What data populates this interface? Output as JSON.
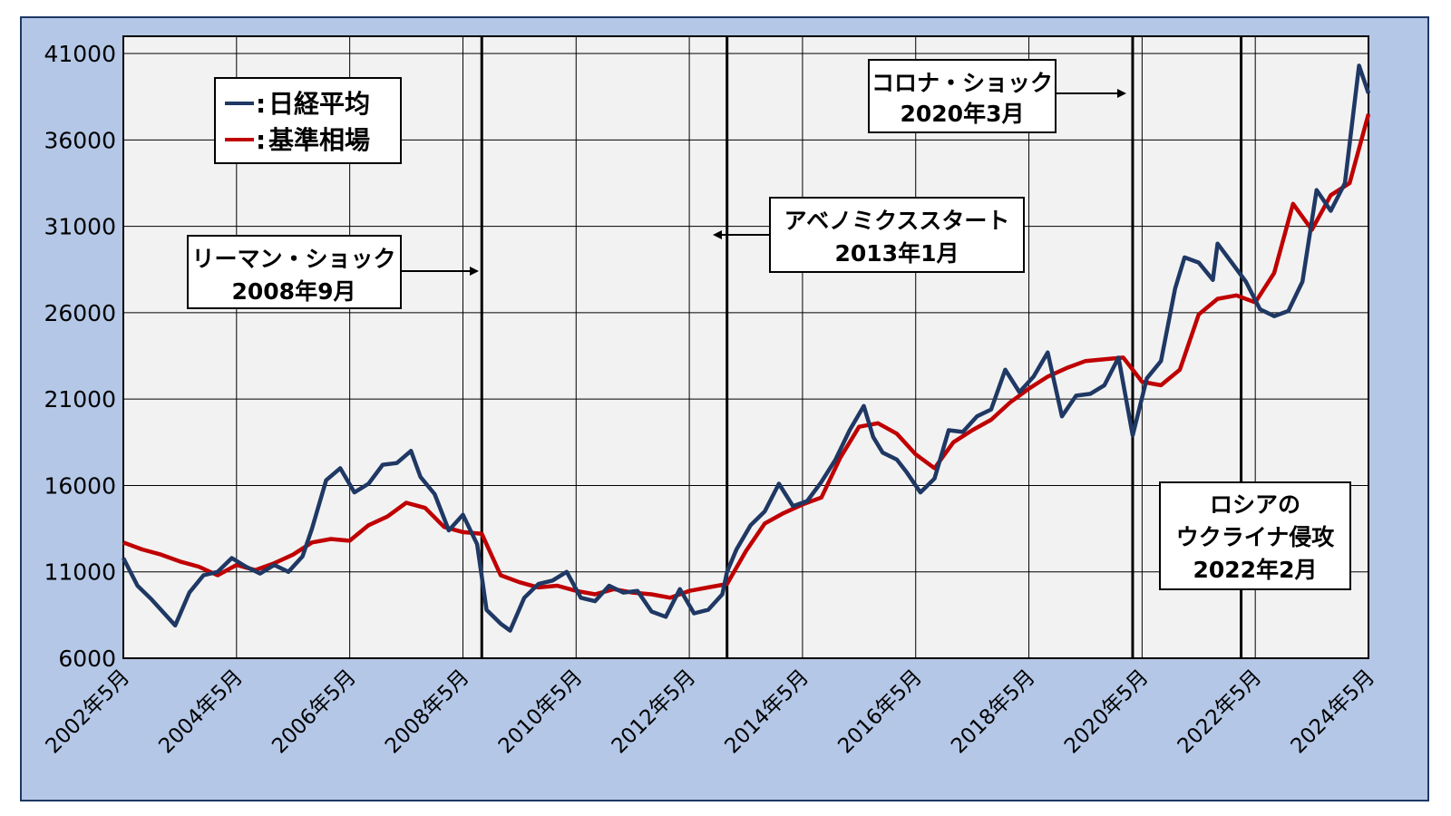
{
  "chart_data": {
    "type": "line",
    "title": "",
    "xlabel": "",
    "ylabel": "",
    "ylim": [
      6000,
      42000
    ],
    "yticks": [
      6000,
      11000,
      16000,
      21000,
      26000,
      31000,
      36000,
      41000
    ],
    "ytick_labels": [
      "6000",
      "11000",
      "16000",
      "21000",
      "26000",
      "31000",
      "36000",
      "41000"
    ],
    "xlim": [
      "2002-05",
      "2024-05"
    ],
    "xtick_labels": [
      "2002年5月",
      "2004年5月",
      "2006年5月",
      "2008年5月",
      "2010年5月",
      "2012年5月",
      "2014年5月",
      "2016年5月",
      "2018年5月",
      "2020年5月",
      "2022年5月",
      "2024年5月"
    ],
    "grid": true,
    "legend_position": "top-left",
    "series": [
      {
        "name": "日経平均",
        "color": "#1f3864",
        "x": [
          "2002-05",
          "2002-08",
          "2002-11",
          "2003-02",
          "2003-04",
          "2003-07",
          "2003-10",
          "2004-01",
          "2004-04",
          "2004-07",
          "2004-10",
          "2005-01",
          "2005-04",
          "2005-07",
          "2005-09",
          "2005-12",
          "2006-03",
          "2006-06",
          "2006-09",
          "2006-12",
          "2007-03",
          "2007-06",
          "2007-08",
          "2007-11",
          "2008-02",
          "2008-05",
          "2008-08",
          "2008-10",
          "2009-01",
          "2009-03",
          "2009-06",
          "2009-09",
          "2009-12",
          "2010-03",
          "2010-06",
          "2010-09",
          "2010-12",
          "2011-03",
          "2011-06",
          "2011-09",
          "2011-12",
          "2012-03",
          "2012-06",
          "2012-09",
          "2012-12",
          "2013-01",
          "2013-03",
          "2013-06",
          "2013-09",
          "2013-12",
          "2014-03",
          "2014-06",
          "2014-09",
          "2014-12",
          "2015-03",
          "2015-06",
          "2015-08",
          "2015-10",
          "2016-01",
          "2016-03",
          "2016-06",
          "2016-09",
          "2016-12",
          "2017-03",
          "2017-06",
          "2017-09",
          "2017-12",
          "2018-03",
          "2018-06",
          "2018-09",
          "2018-12",
          "2019-03",
          "2019-06",
          "2019-09",
          "2019-12",
          "2020-03",
          "2020-06",
          "2020-09",
          "2020-12",
          "2021-02",
          "2021-05",
          "2021-08",
          "2021-09",
          "2021-12",
          "2022-03",
          "2022-06",
          "2022-09",
          "2022-12",
          "2023-03",
          "2023-06",
          "2023-09",
          "2023-12",
          "2024-03",
          "2024-05"
        ],
        "values": [
          11800,
          10200,
          9400,
          8500,
          7900,
          9800,
          10800,
          11000,
          11800,
          11300,
          10900,
          11400,
          11000,
          11900,
          13500,
          16300,
          17000,
          15600,
          16100,
          17200,
          17300,
          18000,
          16500,
          15500,
          13400,
          14300,
          12600,
          8800,
          8000,
          7600,
          9500,
          10300,
          10500,
          11000,
          9500,
          9300,
          10200,
          9800,
          9900,
          8700,
          8400,
          10000,
          8600,
          8800,
          9700,
          11000,
          12300,
          13700,
          14500,
          16100,
          14800,
          15100,
          16200,
          17500,
          19200,
          20600,
          18800,
          17900,
          17500,
          16800,
          15600,
          16400,
          19200,
          19100,
          20000,
          20400,
          22700,
          21400,
          22300,
          23700,
          20000,
          21200,
          21300,
          21800,
          23400,
          18900,
          22200,
          23200,
          27400,
          29200,
          28900,
          27900,
          30000,
          28900,
          27800,
          26200,
          25800,
          26100,
          27800,
          33100,
          31900,
          33500,
          40300,
          38700
        ]
      },
      {
        "name": "基準相場",
        "color": "#c00000",
        "x": [
          "2002-05",
          "2002-09",
          "2003-01",
          "2003-05",
          "2003-09",
          "2004-01",
          "2004-05",
          "2004-09",
          "2005-01",
          "2005-05",
          "2005-09",
          "2006-01",
          "2006-05",
          "2006-09",
          "2007-01",
          "2007-05",
          "2007-09",
          "2008-01",
          "2008-05",
          "2008-09",
          "2009-01",
          "2009-05",
          "2009-09",
          "2010-01",
          "2010-05",
          "2010-09",
          "2011-01",
          "2011-05",
          "2011-09",
          "2012-01",
          "2012-05",
          "2012-09",
          "2013-01",
          "2013-05",
          "2013-09",
          "2014-01",
          "2014-05",
          "2014-09",
          "2015-01",
          "2015-05",
          "2015-09",
          "2016-01",
          "2016-05",
          "2016-09",
          "2017-01",
          "2017-05",
          "2017-09",
          "2018-01",
          "2018-05",
          "2018-09",
          "2019-01",
          "2019-05",
          "2019-09",
          "2020-01",
          "2020-05",
          "2020-09",
          "2021-01",
          "2021-05",
          "2021-09",
          "2022-01",
          "2022-05",
          "2022-09",
          "2023-01",
          "2023-05",
          "2023-09",
          "2024-01",
          "2024-05"
        ],
        "values": [
          12700,
          12300,
          12000,
          11600,
          11300,
          10800,
          11400,
          11100,
          11500,
          12000,
          12700,
          12900,
          12800,
          13700,
          14200,
          15000,
          14700,
          13600,
          13300,
          13200,
          10800,
          10400,
          10100,
          10200,
          9900,
          9700,
          10000,
          9800,
          9700,
          9500,
          9900,
          10100,
          10300,
          12200,
          13800,
          14400,
          14900,
          15300,
          17600,
          19400,
          19600,
          19000,
          17800,
          17000,
          18500,
          19200,
          19800,
          20800,
          21600,
          22300,
          22800,
          23200,
          23300,
          23400,
          22000,
          21800,
          22700,
          25900,
          26800,
          27000,
          26600,
          28300,
          32300,
          30800,
          32800,
          33500,
          37500
        ]
      }
    ],
    "annotations": [
      {
        "label_line1": "リーマン・ショック",
        "label_line2": "2008年9月",
        "date": "2008-09"
      },
      {
        "label_line1": "アベノミクススタート",
        "label_line2": "2013年1月",
        "date": "2013-01"
      },
      {
        "label_line1": "コロナ・ショック",
        "label_line2": "2020年3月",
        "date": "2020-03"
      },
      {
        "label_line1": "ロシアの",
        "label_line2": "ウクライナ侵攻",
        "label_line3": "2022年2月",
        "date": "2022-02"
      }
    ]
  }
}
